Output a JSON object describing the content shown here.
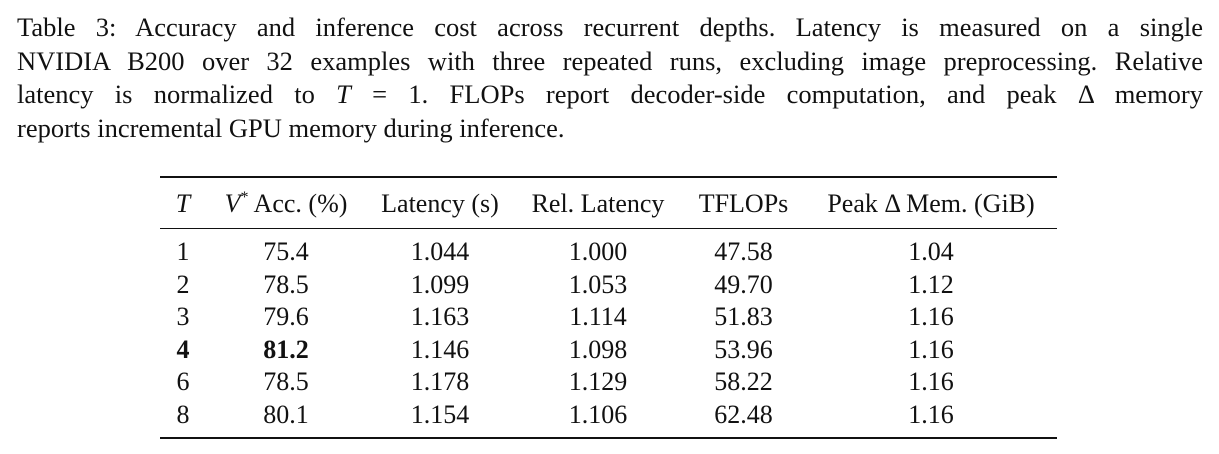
{
  "caption": {
    "line1": "Table 3: Accuracy and inference cost across recurrent depths. Latency is measured on a single",
    "line2": "NVIDIA B200 over 32 examples with three repeated runs, excluding image preprocessing. Relative",
    "line3_pre": "latency is normalized to ",
    "line3_math": "T",
    "line3_eq": " = 1.",
    "line3_post": "  FLOPs report decoder-side computation, and peak Δ memory",
    "line4": "reports incremental GPU memory during inference."
  },
  "table": {
    "headers": {
      "t": "T",
      "acc_v": "V",
      "acc_sup": "*",
      "acc_rest": " Acc. (%)",
      "latency": "Latency (s)",
      "rel_latency": "Rel. Latency",
      "tflops": "TFLOPs",
      "peak_mem": "Peak Δ Mem. (GiB)"
    },
    "rows": [
      {
        "t": "1",
        "acc": "75.4",
        "latency": "1.044",
        "rel": "1.000",
        "tflops": "47.58",
        "mem": "1.04",
        "bold": false
      },
      {
        "t": "2",
        "acc": "78.5",
        "latency": "1.099",
        "rel": "1.053",
        "tflops": "49.70",
        "mem": "1.12",
        "bold": false
      },
      {
        "t": "3",
        "acc": "79.6",
        "latency": "1.163",
        "rel": "1.114",
        "tflops": "51.83",
        "mem": "1.16",
        "bold": false
      },
      {
        "t": "4",
        "acc": "81.2",
        "latency": "1.146",
        "rel": "1.098",
        "tflops": "53.96",
        "mem": "1.16",
        "bold": true
      },
      {
        "t": "6",
        "acc": "78.5",
        "latency": "1.178",
        "rel": "1.129",
        "tflops": "58.22",
        "mem": "1.16",
        "bold": false
      },
      {
        "t": "8",
        "acc": "80.1",
        "latency": "1.154",
        "rel": "1.106",
        "tflops": "62.48",
        "mem": "1.16",
        "bold": false
      }
    ]
  }
}
